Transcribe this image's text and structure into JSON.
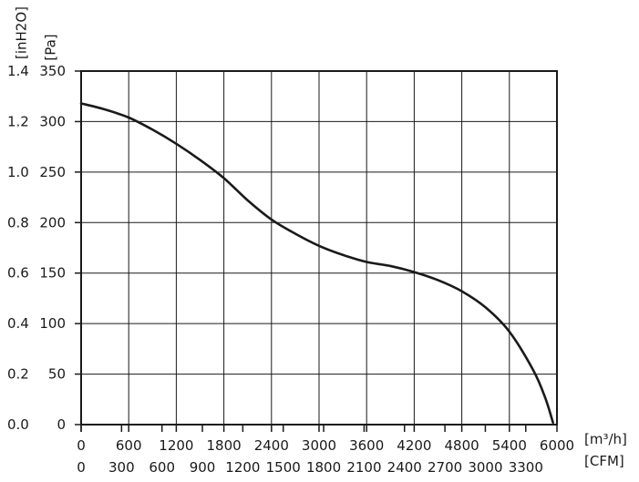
{
  "chart_data": {
    "type": "line",
    "title": "",
    "xlabel": "",
    "ylabel": "",
    "x_unit_primary": "[m³/h]",
    "x_unit_secondary": "[CFM]",
    "y_unit_primary": "[Pa]",
    "y_unit_secondary": "[inH2O]",
    "xlim": [
      0,
      6000
    ],
    "ylim": [
      0,
      350
    ],
    "grid": true,
    "x_ticks_primary": [
      "0",
      "600",
      "1200",
      "1800",
      "2400",
      "3000",
      "3600",
      "4200",
      "4800",
      "5400",
      "6000"
    ],
    "x_ticks_secondary": [
      "0",
      "300",
      "600",
      "900",
      "1200",
      "1500",
      "1800",
      "2100",
      "2400",
      "2700",
      "3000",
      "3300"
    ],
    "y_ticks_primary": [
      "0",
      "50",
      "100",
      "150",
      "200",
      "250",
      "300",
      "350"
    ],
    "y_ticks_secondary": [
      "0.0",
      "0.2",
      "0.4",
      "0.6",
      "0.8",
      "1.0",
      "1.2",
      "1.4"
    ],
    "series": [
      {
        "name": "",
        "x": [
          0,
          300,
          600,
          900,
          1200,
          1500,
          1800,
          2100,
          2400,
          2700,
          3000,
          3300,
          3600,
          3900,
          4200,
          4500,
          4800,
          5100,
          5400,
          5700,
          5850,
          5950
        ],
        "y": [
          318,
          312,
          304,
          292,
          278,
          262,
          244,
          222,
          203,
          189,
          177,
          168,
          161,
          157,
          151,
          143,
          132,
          116,
          92,
          54,
          27,
          2
        ]
      }
    ]
  }
}
